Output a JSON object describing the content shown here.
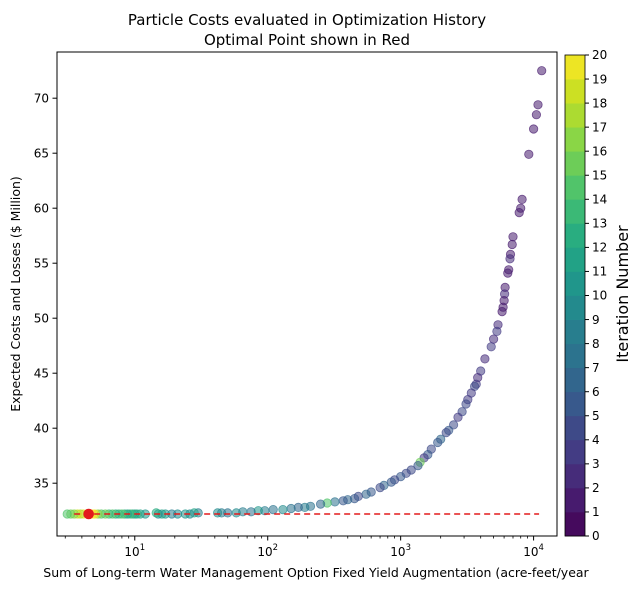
{
  "chart_data": {
    "type": "scatter",
    "title": "Particle Costs evaluated in Optimization History",
    "subtitle": "Optimal Point shown in Red",
    "xlabel": "Sum of Long-term Water Management Option Fixed Yield Augmentation (acre-feet/year",
    "ylabel": "Expected Costs and Losses ($ Million)",
    "x_scale": "log",
    "xlim": [
      2.6,
      15000
    ],
    "ylim": [
      30.2,
      74.2
    ],
    "x_ticks": [
      10,
      100,
      1000,
      10000
    ],
    "x_tick_labels": [
      {
        "base": "10",
        "exp": "1"
      },
      {
        "base": "10",
        "exp": "2"
      },
      {
        "base": "10",
        "exp": "3"
      },
      {
        "base": "10",
        "exp": "4"
      }
    ],
    "y_ticks": [
      35,
      40,
      45,
      50,
      55,
      60,
      65,
      70
    ],
    "y_tick_labels": [
      "35",
      "40",
      "45",
      "50",
      "55",
      "60",
      "65",
      "70"
    ],
    "colorbar": {
      "label": "Iteration Number",
      "min": 0,
      "max": 20,
      "ticks": [
        "0",
        "1",
        "2",
        "3",
        "4",
        "5",
        "6",
        "7",
        "8",
        "9",
        "10",
        "11",
        "12",
        "13",
        "14",
        "15",
        "16",
        "17",
        "18",
        "19",
        "20"
      ],
      "colormap": "viridis"
    },
    "optimal_point": {
      "x": 4.5,
      "y": 32.2,
      "color": "#e31a1c"
    },
    "reference_line": {
      "y": 32.2,
      "x_range": [
        3.5,
        11000
      ],
      "style": "dashed",
      "color": "#e31a1c"
    },
    "points": [
      {
        "x": 11500,
        "y": 72.5,
        "it": 1
      },
      {
        "x": 10800,
        "y": 69.4,
        "it": 1
      },
      {
        "x": 10500,
        "y": 68.5,
        "it": 1
      },
      {
        "x": 10000,
        "y": 67.2,
        "it": 1
      },
      {
        "x": 9200,
        "y": 64.9,
        "it": 1
      },
      {
        "x": 8200,
        "y": 60.8,
        "it": 1
      },
      {
        "x": 8000,
        "y": 60.0,
        "it": 1
      },
      {
        "x": 7800,
        "y": 59.6,
        "it": 1
      },
      {
        "x": 7000,
        "y": 57.4,
        "it": 1
      },
      {
        "x": 6900,
        "y": 56.7,
        "it": 1
      },
      {
        "x": 6700,
        "y": 55.8,
        "it": 1
      },
      {
        "x": 6650,
        "y": 55.4,
        "it": 2
      },
      {
        "x": 6500,
        "y": 54.4,
        "it": 1
      },
      {
        "x": 6400,
        "y": 54.1,
        "it": 1
      },
      {
        "x": 6100,
        "y": 52.8,
        "it": 1
      },
      {
        "x": 6050,
        "y": 52.2,
        "it": 2
      },
      {
        "x": 6000,
        "y": 51.6,
        "it": 1
      },
      {
        "x": 5900,
        "y": 51.0,
        "it": 1
      },
      {
        "x": 5800,
        "y": 50.6,
        "it": 1
      },
      {
        "x": 5400,
        "y": 49.4,
        "it": 2
      },
      {
        "x": 5300,
        "y": 48.8,
        "it": 3
      },
      {
        "x": 5000,
        "y": 48.1,
        "it": 2
      },
      {
        "x": 4800,
        "y": 47.4,
        "it": 3
      },
      {
        "x": 4300,
        "y": 46.3,
        "it": 2
      },
      {
        "x": 4000,
        "y": 45.2,
        "it": 3
      },
      {
        "x": 3800,
        "y": 44.6,
        "it": 2
      },
      {
        "x": 3700,
        "y": 44.0,
        "it": 3
      },
      {
        "x": 3600,
        "y": 43.8,
        "it": 4
      },
      {
        "x": 3400,
        "y": 43.2,
        "it": 3
      },
      {
        "x": 3200,
        "y": 42.6,
        "it": 3
      },
      {
        "x": 3100,
        "y": 42.2,
        "it": 4
      },
      {
        "x": 2900,
        "y": 41.5,
        "it": 4
      },
      {
        "x": 2700,
        "y": 41.0,
        "it": 3
      },
      {
        "x": 2500,
        "y": 40.3,
        "it": 4
      },
      {
        "x": 2300,
        "y": 39.8,
        "it": 5
      },
      {
        "x": 2200,
        "y": 39.6,
        "it": 4
      },
      {
        "x": 2000,
        "y": 39.0,
        "it": 6
      },
      {
        "x": 1900,
        "y": 38.7,
        "it": 5
      },
      {
        "x": 1700,
        "y": 38.1,
        "it": 4
      },
      {
        "x": 1600,
        "y": 37.6,
        "it": 5
      },
      {
        "x": 1500,
        "y": 37.3,
        "it": 3
      },
      {
        "x": 1400,
        "y": 36.9,
        "it": 15
      },
      {
        "x": 1350,
        "y": 36.6,
        "it": 5
      },
      {
        "x": 1200,
        "y": 36.2,
        "it": 4
      },
      {
        "x": 1100,
        "y": 35.9,
        "it": 4
      },
      {
        "x": 1000,
        "y": 35.6,
        "it": 5
      },
      {
        "x": 900,
        "y": 35.3,
        "it": 4
      },
      {
        "x": 850,
        "y": 35.1,
        "it": 5
      },
      {
        "x": 750,
        "y": 34.8,
        "it": 6
      },
      {
        "x": 700,
        "y": 34.6,
        "it": 4
      },
      {
        "x": 600,
        "y": 34.2,
        "it": 5
      },
      {
        "x": 550,
        "y": 34.0,
        "it": 6
      },
      {
        "x": 480,
        "y": 33.8,
        "it": 4
      },
      {
        "x": 450,
        "y": 33.6,
        "it": 5
      },
      {
        "x": 400,
        "y": 33.5,
        "it": 6
      },
      {
        "x": 370,
        "y": 33.4,
        "it": 5
      },
      {
        "x": 320,
        "y": 33.3,
        "it": 7
      },
      {
        "x": 280,
        "y": 33.2,
        "it": 14
      },
      {
        "x": 250,
        "y": 33.1,
        "it": 6
      },
      {
        "x": 210,
        "y": 32.9,
        "it": 7
      },
      {
        "x": 190,
        "y": 32.8,
        "it": 8
      },
      {
        "x": 170,
        "y": 32.8,
        "it": 6
      },
      {
        "x": 150,
        "y": 32.7,
        "it": 7
      },
      {
        "x": 130,
        "y": 32.6,
        "it": 9
      },
      {
        "x": 110,
        "y": 32.6,
        "it": 7
      },
      {
        "x": 95,
        "y": 32.5,
        "it": 8
      },
      {
        "x": 85,
        "y": 32.5,
        "it": 10
      },
      {
        "x": 75,
        "y": 32.4,
        "it": 7
      },
      {
        "x": 65,
        "y": 32.4,
        "it": 8
      },
      {
        "x": 58,
        "y": 32.3,
        "it": 9
      },
      {
        "x": 50,
        "y": 32.3,
        "it": 7
      },
      {
        "x": 45,
        "y": 32.3,
        "it": 8
      },
      {
        "x": 42,
        "y": 32.3,
        "it": 9
      },
      {
        "x": 30,
        "y": 32.3,
        "it": 8
      },
      {
        "x": 28,
        "y": 32.3,
        "it": 11
      },
      {
        "x": 26,
        "y": 32.2,
        "it": 9
      },
      {
        "x": 24,
        "y": 32.2,
        "it": 10
      },
      {
        "x": 21,
        "y": 32.2,
        "it": 9
      },
      {
        "x": 19,
        "y": 32.2,
        "it": 8
      },
      {
        "x": 17,
        "y": 32.2,
        "it": 10
      },
      {
        "x": 16,
        "y": 32.2,
        "it": 11
      },
      {
        "x": 15,
        "y": 32.2,
        "it": 9
      },
      {
        "x": 14.5,
        "y": 32.3,
        "it": 12
      },
      {
        "x": 12,
        "y": 32.2,
        "it": 10
      },
      {
        "x": 11,
        "y": 32.2,
        "it": 11
      },
      {
        "x": 10.4,
        "y": 32.2,
        "it": 12
      },
      {
        "x": 10,
        "y": 32.2,
        "it": 11
      },
      {
        "x": 9.6,
        "y": 32.2,
        "it": 12
      },
      {
        "x": 9.2,
        "y": 32.2,
        "it": 13
      },
      {
        "x": 8.8,
        "y": 32.2,
        "it": 11
      },
      {
        "x": 8.4,
        "y": 32.2,
        "it": 12
      },
      {
        "x": 8.0,
        "y": 32.2,
        "it": 14
      },
      {
        "x": 7.6,
        "y": 32.2,
        "it": 13
      },
      {
        "x": 7.2,
        "y": 32.2,
        "it": 12
      },
      {
        "x": 6.8,
        "y": 32.2,
        "it": 14
      },
      {
        "x": 6.4,
        "y": 32.2,
        "it": 13
      },
      {
        "x": 6.0,
        "y": 32.2,
        "it": 15
      },
      {
        "x": 5.6,
        "y": 32.2,
        "it": 14
      },
      {
        "x": 5.3,
        "y": 32.2,
        "it": 16
      },
      {
        "x": 5.0,
        "y": 32.2,
        "it": 19
      },
      {
        "x": 4.8,
        "y": 32.2,
        "it": 20
      },
      {
        "x": 4.4,
        "y": 32.2,
        "it": 18
      },
      {
        "x": 4.1,
        "y": 32.2,
        "it": 19
      },
      {
        "x": 3.9,
        "y": 32.2,
        "it": 17
      },
      {
        "x": 3.7,
        "y": 32.2,
        "it": 18
      },
      {
        "x": 3.5,
        "y": 32.2,
        "it": 16
      },
      {
        "x": 3.3,
        "y": 32.2,
        "it": 15
      },
      {
        "x": 3.1,
        "y": 32.2,
        "it": 14
      }
    ]
  }
}
